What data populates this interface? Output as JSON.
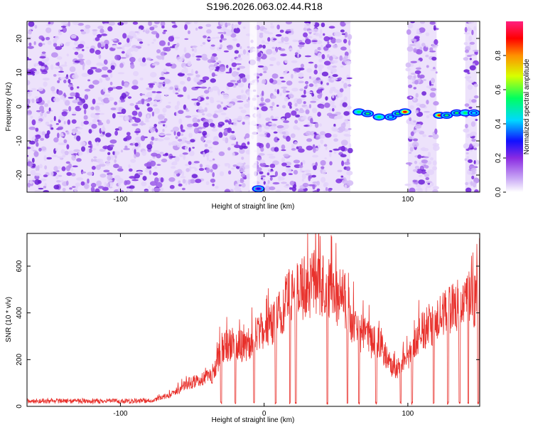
{
  "title": "S196.2026.063.02.44.R18",
  "colors": {
    "snr_line": "#e8302b",
    "axis": "#000000",
    "background": "#ffffff"
  },
  "chart_data": [
    {
      "type": "heatmap",
      "name": "spectrogram",
      "xlabel": "Height of straight line (km)",
      "ylabel": "Frequency (Hz)",
      "xlim": [
        -165,
        150
      ],
      "ylim": [
        -25,
        25
      ],
      "xticks": [
        -100,
        0,
        100
      ],
      "xtick_labels": [
        "-100",
        "0",
        "100"
      ],
      "yticks": [
        -20,
        -10,
        0,
        10,
        20
      ],
      "ytick_labels": [
        "-20",
        "-10",
        "0",
        "10",
        "20"
      ],
      "colorbar": {
        "label": "Normalized spectral amplitude",
        "range": [
          0,
          1
        ],
        "ticks": [
          0.0,
          0.2,
          0.4,
          0.6,
          0.8
        ],
        "tick_labels": [
          "0.0",
          "0.2",
          "0.4",
          "0.6",
          "0.8"
        ],
        "colormap": [
          "#ffffff",
          "#c9a8f5",
          "#8a2be2",
          "#1010ff",
          "#00d8ff",
          "#00ff60",
          "#d8ff00",
          "#ff9000",
          "#ff0000",
          "#ff2080"
        ]
      },
      "noise_regions": [
        [
          -165,
          60
        ],
        [
          100,
          120
        ],
        [
          140,
          148
        ]
      ],
      "gaps": [
        [
          60,
          100
        ],
        [
          120,
          140
        ]
      ],
      "strong_blobs": [
        {
          "x": 66,
          "f": -1.5,
          "amp": 0.55
        },
        {
          "x": 72,
          "f": -2,
          "amp": 0.5
        },
        {
          "x": 80,
          "f": -3,
          "amp": 0.55
        },
        {
          "x": 88,
          "f": -3,
          "amp": 0.45
        },
        {
          "x": 93,
          "f": -2,
          "amp": 0.5
        },
        {
          "x": 98,
          "f": -1.5,
          "amp": 0.85
        },
        {
          "x": 122,
          "f": -2.5,
          "amp": 0.85
        },
        {
          "x": 127,
          "f": -2.5,
          "amp": 0.5
        },
        {
          "x": 134,
          "f": -1.8,
          "amp": 0.5
        },
        {
          "x": 140,
          "f": -1.8,
          "amp": 0.55
        },
        {
          "x": 146,
          "f": -1.8,
          "amp": 0.45
        },
        {
          "x": -4,
          "f": -24,
          "amp": 0.35
        }
      ]
    },
    {
      "type": "line",
      "name": "snr",
      "xlabel": "Height of straight line (km)",
      "ylabel": "SNR (10 * v/v)",
      "xlim": [
        -165,
        150
      ],
      "ylim": [
        0,
        740
      ],
      "xticks": [
        -100,
        0,
        100
      ],
      "xtick_labels": [
        "-100",
        "0",
        "100"
      ],
      "yticks": [
        0,
        200,
        400,
        600
      ],
      "ytick_labels": [
        "0",
        "200",
        "400",
        "600"
      ],
      "envelope_x": [
        -165,
        -80,
        -65,
        -55,
        -45,
        -40,
        -35,
        -30,
        -20,
        -15,
        -10,
        -5,
        0,
        5,
        10,
        15,
        20,
        25,
        30,
        35,
        40,
        45,
        50,
        55,
        60,
        65,
        70,
        75,
        80,
        85,
        90,
        95,
        100,
        105,
        110,
        115,
        120,
        125,
        130,
        135,
        140,
        145,
        150
      ],
      "envelope_y": [
        25,
        25,
        60,
        110,
        140,
        150,
        160,
        300,
        330,
        310,
        330,
        370,
        400,
        420,
        480,
        540,
        600,
        600,
        620,
        640,
        620,
        610,
        560,
        570,
        470,
        380,
        370,
        330,
        350,
        260,
        190,
        200,
        260,
        320,
        400,
        420,
        440,
        470,
        500,
        520,
        540,
        560,
        560
      ],
      "dropouts": [
        -30,
        -20,
        -7,
        8,
        18,
        22,
        44,
        58,
        66,
        78,
        95,
        103,
        118,
        128,
        136,
        142,
        149
      ]
    }
  ]
}
